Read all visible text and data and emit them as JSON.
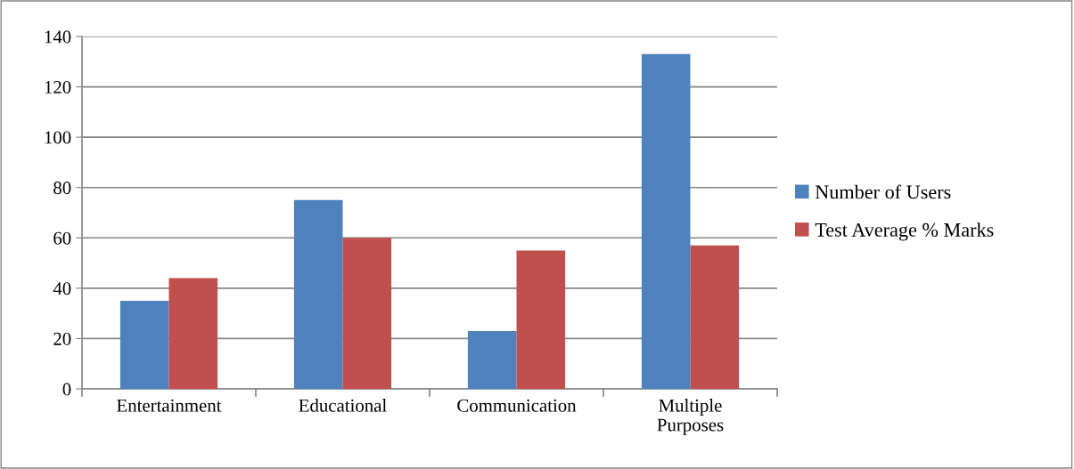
{
  "chart_data": {
    "type": "bar",
    "categories": [
      "Entertainment",
      "Educational",
      "Communication",
      "Multiple\nPurposes"
    ],
    "series": [
      {
        "name": "Number of Users",
        "color": "#4f81bd",
        "values": [
          35,
          75,
          23,
          133
        ]
      },
      {
        "name": "Test Average % Marks",
        "color": "#c0504d",
        "values": [
          44,
          60,
          55,
          57
        ]
      }
    ],
    "ylim": [
      0,
      140
    ],
    "yticks": [
      0,
      20,
      40,
      60,
      80,
      100,
      120,
      140
    ],
    "grid": "y",
    "legend": "right"
  }
}
